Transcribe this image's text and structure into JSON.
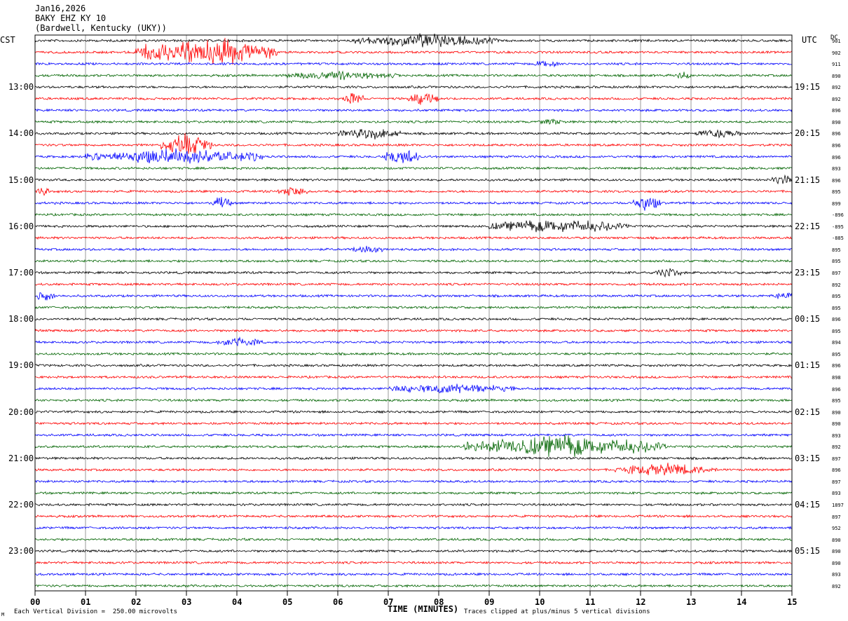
{
  "header": {
    "date": "Jan16,2026",
    "station": "BAKY EHZ KY 10",
    "location": "(Bardwell, Kentucky (UKY))"
  },
  "left_tz": "CST",
  "right_tz": "UTC",
  "dc_label": "DC",
  "footer": {
    "scale_note": "Each Vertical Division =  250.00 microvolts",
    "clip_note": "Traces clipped at plus/minus 5 vertical divisions",
    "corner_mark": "M"
  },
  "chart_data": {
    "type": "line",
    "title": "BAKY EHZ KY 10",
    "xlabel": "TIME (MINUTES)",
    "ylabel": "",
    "xlim": [
      0,
      15
    ],
    "x_ticks": [
      "00",
      "01",
      "02",
      "03",
      "04",
      "05",
      "06",
      "07",
      "08",
      "09",
      "10",
      "11",
      "12",
      "13",
      "14",
      "15"
    ],
    "minutes_per_line": 15,
    "trace_count": 48,
    "colors": [
      "#000000",
      "#ff0000",
      "#0000ff",
      "#006400"
    ],
    "left_hour_labels": [
      "13:00",
      "14:00",
      "15:00",
      "16:00",
      "17:00",
      "18:00",
      "19:00",
      "20:00",
      "21:00",
      "22:00",
      "23:00"
    ],
    "right_hour_labels": [
      "19:15",
      "20:15",
      "21:15",
      "22:15",
      "23:15",
      "00:15",
      "01:15",
      "02:15",
      "03:15",
      "04:15",
      "05:15"
    ],
    "dc_offsets": [
      "901",
      "902",
      "911",
      "890",
      "892",
      "892",
      "896",
      "890",
      "896",
      "896",
      "896",
      "893",
      "896",
      "895",
      "899",
      "-896",
      "-895",
      "-885",
      "895",
      "895",
      "897",
      "892",
      "895",
      "895",
      "896",
      "895",
      "894",
      "895",
      "896",
      "898",
      "896",
      "895",
      "890",
      "890",
      "893",
      "892",
      "897",
      "896",
      "897",
      "893",
      "1897",
      "897",
      "952",
      "890",
      "890",
      "890",
      "893",
      "892"
    ],
    "events": [
      {
        "trace": 0,
        "start_min": 6.3,
        "end_min": 9.2,
        "amplitude": 2.2
      },
      {
        "trace": 1,
        "start_min": 2.0,
        "end_min": 4.8,
        "amplitude": 5.0
      },
      {
        "trace": 2,
        "start_min": 9.9,
        "end_min": 10.4,
        "amplitude": 1.3
      },
      {
        "trace": 3,
        "start_min": 5.0,
        "end_min": 7.2,
        "amplitude": 1.2
      },
      {
        "trace": 3,
        "start_min": 12.7,
        "end_min": 13.0,
        "amplitude": 1.2
      },
      {
        "trace": 5,
        "start_min": 6.1,
        "end_min": 6.5,
        "amplitude": 2.2
      },
      {
        "trace": 5,
        "start_min": 7.4,
        "end_min": 8.0,
        "amplitude": 2.0
      },
      {
        "trace": 7,
        "start_min": 10.0,
        "end_min": 10.5,
        "amplitude": 1.0
      },
      {
        "trace": 8,
        "start_min": 6.0,
        "end_min": 7.3,
        "amplitude": 1.8
      },
      {
        "trace": 8,
        "start_min": 13.1,
        "end_min": 14.0,
        "amplitude": 1.5
      },
      {
        "trace": 9,
        "start_min": 2.5,
        "end_min": 3.5,
        "amplitude": 3.5
      },
      {
        "trace": 10,
        "start_min": 1.0,
        "end_min": 4.5,
        "amplitude": 2.5
      },
      {
        "trace": 10,
        "start_min": 6.9,
        "end_min": 7.6,
        "amplitude": 2.8
      },
      {
        "trace": 12,
        "start_min": 14.6,
        "end_min": 15.0,
        "amplitude": 1.8
      },
      {
        "trace": 13,
        "start_min": 0.0,
        "end_min": 0.3,
        "amplitude": 1.4
      },
      {
        "trace": 13,
        "start_min": 4.8,
        "end_min": 5.4,
        "amplitude": 1.4
      },
      {
        "trace": 14,
        "start_min": 3.5,
        "end_min": 3.9,
        "amplitude": 2.0
      },
      {
        "trace": 14,
        "start_min": 11.8,
        "end_min": 12.4,
        "amplitude": 2.5
      },
      {
        "trace": 16,
        "start_min": 9.0,
        "end_min": 11.8,
        "amplitude": 2.2
      },
      {
        "trace": 18,
        "start_min": 6.3,
        "end_min": 6.9,
        "amplitude": 1.3
      },
      {
        "trace": 20,
        "start_min": 12.3,
        "end_min": 12.8,
        "amplitude": 1.6
      },
      {
        "trace": 22,
        "start_min": 0.0,
        "end_min": 0.4,
        "amplitude": 1.4
      },
      {
        "trace": 22,
        "start_min": 14.6,
        "end_min": 15.0,
        "amplitude": 1.2
      },
      {
        "trace": 26,
        "start_min": 3.6,
        "end_min": 4.5,
        "amplitude": 1.4
      },
      {
        "trace": 30,
        "start_min": 7.0,
        "end_min": 9.5,
        "amplitude": 1.4
      },
      {
        "trace": 35,
        "start_min": 8.5,
        "end_min": 12.5,
        "amplitude": 3.5
      },
      {
        "trace": 37,
        "start_min": 11.5,
        "end_min": 13.5,
        "amplitude": 1.9
      }
    ]
  }
}
